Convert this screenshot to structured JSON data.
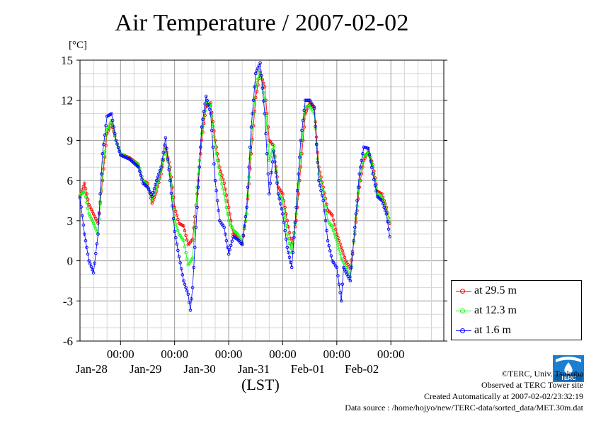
{
  "page": {
    "title": "Air Temperature / 2007-02-02",
    "unit_label": "[°C]",
    "x_axis_label": "(LST)",
    "credits": {
      "copyright": "©TERC, Univ. Tsukuba",
      "observed": "Observed at TERC Tower site",
      "created": "Created Automatically at 2007-02-02/23:32:19",
      "source": "Data source : /home/hojyo/new/TERC-data/sorted_data/MET.30m.dat"
    },
    "logo_text": "TERC"
  },
  "chart_data": {
    "type": "line",
    "title": "Air Temperature / 2007-02-02",
    "ylabel": "[°C]",
    "xlabel": "(LST)",
    "ylim": [
      -6,
      15
    ],
    "yticks": [
      -6,
      -3,
      0,
      3,
      6,
      9,
      12,
      15
    ],
    "x_range_days": [
      "2007-01-27 06:00",
      "2007-02-02 23:30"
    ],
    "xticks": [
      {
        "time": "00:00",
        "date": "Jan-28"
      },
      {
        "time": "00:00",
        "date": "Jan-29"
      },
      {
        "time": "00:00",
        "date": "Jan-30"
      },
      {
        "time": "00:00",
        "date": "Jan-31"
      },
      {
        "time": "00:00",
        "date": "Feb-01"
      },
      {
        "time": "00:00",
        "date": "Feb-02"
      }
    ],
    "grid": true,
    "legend_placement": "bottom-right outside",
    "series": [
      {
        "name": "at 29.5 m",
        "color": "#ff0000",
        "points": [
          [
            "2007-01-27 06:00",
            4.8
          ],
          [
            "2007-01-27 08:00",
            5.8
          ],
          [
            "2007-01-27 10:00",
            4.2
          ],
          [
            "2007-01-27 12:00",
            3.5
          ],
          [
            "2007-01-27 14:00",
            2.8
          ],
          [
            "2007-01-27 16:00",
            6.0
          ],
          [
            "2007-01-27 18:00",
            9.5
          ],
          [
            "2007-01-27 20:00",
            10.3
          ],
          [
            "2007-01-27 22:00",
            9.0
          ],
          [
            "2007-01-28 00:00",
            8.0
          ],
          [
            "2007-01-28 04:00",
            7.7
          ],
          [
            "2007-01-28 08:00",
            7.2
          ],
          [
            "2007-01-28 10:00",
            6.0
          ],
          [
            "2007-01-28 12:00",
            5.8
          ],
          [
            "2007-01-28 14:00",
            4.3
          ],
          [
            "2007-01-28 16:00",
            5.2
          ],
          [
            "2007-01-28 18:00",
            6.5
          ],
          [
            "2007-01-28 20:00",
            8.5
          ],
          [
            "2007-01-28 22:00",
            7.0
          ],
          [
            "2007-01-29 00:00",
            4.0
          ],
          [
            "2007-01-29 02:00",
            2.8
          ],
          [
            "2007-01-29 04:00",
            2.6
          ],
          [
            "2007-01-29 06:00",
            1.2
          ],
          [
            "2007-01-29 08:00",
            1.6
          ],
          [
            "2007-01-29 10:00",
            5.0
          ],
          [
            "2007-01-29 12:00",
            9.0
          ],
          [
            "2007-01-29 14:00",
            11.5
          ],
          [
            "2007-01-29 16:00",
            11.8
          ],
          [
            "2007-01-29 18:00",
            9.0
          ],
          [
            "2007-01-29 20:00",
            7.0
          ],
          [
            "2007-01-29 22:00",
            5.8
          ],
          [
            "2007-01-30 00:00",
            4.0
          ],
          [
            "2007-01-30 02:00",
            2.0
          ],
          [
            "2007-01-30 04:00",
            1.8
          ],
          [
            "2007-01-30 06:00",
            1.3
          ],
          [
            "2007-01-30 08:00",
            3.5
          ],
          [
            "2007-01-30 10:00",
            8.0
          ],
          [
            "2007-01-30 12:00",
            12.2
          ],
          [
            "2007-01-30 14:00",
            14.1
          ],
          [
            "2007-01-30 16:00",
            13.0
          ],
          [
            "2007-01-30 18:00",
            9.0
          ],
          [
            "2007-01-30 20:00",
            8.6
          ],
          [
            "2007-01-30 22:00",
            5.5
          ],
          [
            "2007-01-31 00:00",
            5.0
          ],
          [
            "2007-01-31 02:00",
            3.0
          ],
          [
            "2007-01-31 04:00",
            1.2
          ],
          [
            "2007-01-31 06:00",
            3.0
          ],
          [
            "2007-01-31 08:00",
            7.0
          ],
          [
            "2007-01-31 10:00",
            11.0
          ],
          [
            "2007-01-31 12:00",
            11.8
          ],
          [
            "2007-01-31 14:00",
            11.5
          ],
          [
            "2007-01-31 16:00",
            7.0
          ],
          [
            "2007-01-31 18:00",
            5.5
          ],
          [
            "2007-01-31 20:00",
            3.8
          ],
          [
            "2007-01-31 22:00",
            3.4
          ],
          [
            "2007-02-01 00:00",
            2.0
          ],
          [
            "2007-02-01 02:00",
            1.0
          ],
          [
            "2007-02-01 04:00",
            0.0
          ],
          [
            "2007-02-01 06:00",
            -0.6
          ],
          [
            "2007-02-01 08:00",
            2.0
          ],
          [
            "2007-02-01 10:00",
            5.5
          ],
          [
            "2007-02-01 12:00",
            7.5
          ],
          [
            "2007-02-01 14:00",
            8.2
          ],
          [
            "2007-02-01 16:00",
            7.2
          ],
          [
            "2007-02-01 18:00",
            5.2
          ],
          [
            "2007-02-01 20:00",
            5.0
          ],
          [
            "2007-02-01 22:00",
            4.0
          ],
          [
            "2007-02-01 23:30",
            2.8
          ]
        ]
      },
      {
        "name": "at 12.3 m",
        "color": "#00ff00",
        "points": [
          [
            "2007-01-27 06:00",
            4.9
          ],
          [
            "2007-01-27 08:00",
            5.2
          ],
          [
            "2007-01-27 10:00",
            3.5
          ],
          [
            "2007-01-27 12:00",
            2.8
          ],
          [
            "2007-01-27 14:00",
            2.0
          ],
          [
            "2007-01-27 16:00",
            6.5
          ],
          [
            "2007-01-27 18:00",
            9.8
          ],
          [
            "2007-01-27 20:00",
            10.5
          ],
          [
            "2007-01-27 22:00",
            9.0
          ],
          [
            "2007-01-28 00:00",
            8.0
          ],
          [
            "2007-01-28 04:00",
            7.6
          ],
          [
            "2007-01-28 08:00",
            7.2
          ],
          [
            "2007-01-28 10:00",
            6.0
          ],
          [
            "2007-01-28 12:00",
            5.7
          ],
          [
            "2007-01-28 14:00",
            4.5
          ],
          [
            "2007-01-28 16:00",
            5.5
          ],
          [
            "2007-01-28 18:00",
            6.8
          ],
          [
            "2007-01-28 20:00",
            8.4
          ],
          [
            "2007-01-28 22:00",
            6.5
          ],
          [
            "2007-01-29 00:00",
            3.0
          ],
          [
            "2007-01-29 02:00",
            2.0
          ],
          [
            "2007-01-29 04:00",
            1.5
          ],
          [
            "2007-01-29 06:00",
            -0.3
          ],
          [
            "2007-01-29 08:00",
            0.2
          ],
          [
            "2007-01-29 10:00",
            5.5
          ],
          [
            "2007-01-29 12:00",
            9.5
          ],
          [
            "2007-01-29 14:00",
            11.8
          ],
          [
            "2007-01-29 16:00",
            11.6
          ],
          [
            "2007-01-29 18:00",
            8.5
          ],
          [
            "2007-01-29 20:00",
            6.5
          ],
          [
            "2007-01-29 22:00",
            5.0
          ],
          [
            "2007-01-30 00:00",
            3.0
          ],
          [
            "2007-01-30 02:00",
            2.3
          ],
          [
            "2007-01-30 04:00",
            2.0
          ],
          [
            "2007-01-30 06:00",
            1.4
          ],
          [
            "2007-01-30 08:00",
            3.5
          ],
          [
            "2007-01-30 10:00",
            9.0
          ],
          [
            "2007-01-30 12:00",
            13.0
          ],
          [
            "2007-01-30 14:00",
            14.2
          ],
          [
            "2007-01-30 16:00",
            12.0
          ],
          [
            "2007-01-30 18:00",
            7.5
          ],
          [
            "2007-01-30 20:00",
            8.6
          ],
          [
            "2007-01-30 22:00",
            5.0
          ],
          [
            "2007-01-31 00:00",
            4.5
          ],
          [
            "2007-01-31 02:00",
            2.0
          ],
          [
            "2007-01-31 04:00",
            0.6
          ],
          [
            "2007-01-31 06:00",
            3.5
          ],
          [
            "2007-01-31 08:00",
            8.0
          ],
          [
            "2007-01-31 10:00",
            11.5
          ],
          [
            "2007-01-31 12:00",
            11.6
          ],
          [
            "2007-01-31 14:00",
            11.0
          ],
          [
            "2007-01-31 16:00",
            6.5
          ],
          [
            "2007-01-31 18:00",
            5.2
          ],
          [
            "2007-01-31 20:00",
            3.0
          ],
          [
            "2007-01-31 22:00",
            2.5
          ],
          [
            "2007-02-01 00:00",
            1.5
          ],
          [
            "2007-02-01 02:00",
            0.2
          ],
          [
            "2007-02-01 04:00",
            -0.5
          ],
          [
            "2007-02-01 06:00",
            -1.2
          ],
          [
            "2007-02-01 08:00",
            2.2
          ],
          [
            "2007-02-01 10:00",
            6.0
          ],
          [
            "2007-02-01 12:00",
            7.8
          ],
          [
            "2007-02-01 14:00",
            8.1
          ],
          [
            "2007-02-01 16:00",
            7.0
          ],
          [
            "2007-02-01 18:00",
            5.0
          ],
          [
            "2007-02-01 20:00",
            4.8
          ],
          [
            "2007-02-01 22:00",
            3.8
          ],
          [
            "2007-02-01 23:30",
            2.9
          ]
        ]
      },
      {
        "name": "at 1.6 m",
        "color": "#0000ff",
        "points": [
          [
            "2007-01-27 06:00",
            4.7
          ],
          [
            "2007-01-27 08:00",
            2.0
          ],
          [
            "2007-01-27 10:00",
            0.0
          ],
          [
            "2007-01-27 12:00",
            -0.9
          ],
          [
            "2007-01-27 14:00",
            2.0
          ],
          [
            "2007-01-27 16:00",
            8.0
          ],
          [
            "2007-01-27 18:00",
            10.8
          ],
          [
            "2007-01-27 20:00",
            11.0
          ],
          [
            "2007-01-27 22:00",
            9.0
          ],
          [
            "2007-01-28 00:00",
            7.9
          ],
          [
            "2007-01-28 04:00",
            7.6
          ],
          [
            "2007-01-28 08:00",
            7.0
          ],
          [
            "2007-01-28 10:00",
            5.8
          ],
          [
            "2007-01-28 12:00",
            5.5
          ],
          [
            "2007-01-28 14:00",
            4.8
          ],
          [
            "2007-01-28 16:00",
            6.0
          ],
          [
            "2007-01-28 18:00",
            7.0
          ],
          [
            "2007-01-28 20:00",
            9.2
          ],
          [
            "2007-01-28 22:00",
            6.0
          ],
          [
            "2007-01-29 00:00",
            2.2
          ],
          [
            "2007-01-29 02:00",
            0.3
          ],
          [
            "2007-01-29 04:00",
            -1.5
          ],
          [
            "2007-01-29 06:00",
            -2.5
          ],
          [
            "2007-01-29 07:00",
            -3.7
          ],
          [
            "2007-01-29 08:00",
            -2.0
          ],
          [
            "2007-01-29 10:00",
            4.0
          ],
          [
            "2007-01-29 12:00",
            10.0
          ],
          [
            "2007-01-29 14:00",
            12.3
          ],
          [
            "2007-01-29 16:00",
            11.0
          ],
          [
            "2007-01-29 18:00",
            6.0
          ],
          [
            "2007-01-29 20:00",
            3.0
          ],
          [
            "2007-01-29 22:00",
            2.5
          ],
          [
            "2007-01-30 00:00",
            0.5
          ],
          [
            "2007-01-30 02:00",
            1.8
          ],
          [
            "2007-01-30 04:00",
            1.6
          ],
          [
            "2007-01-30 06:00",
            1.2
          ],
          [
            "2007-01-30 08:00",
            4.0
          ],
          [
            "2007-01-30 10:00",
            10.0
          ],
          [
            "2007-01-30 12:00",
            14.0
          ],
          [
            "2007-01-30 14:00",
            14.8
          ],
          [
            "2007-01-30 16:00",
            11.0
          ],
          [
            "2007-01-30 18:00",
            5.0
          ],
          [
            "2007-01-30 20:00",
            8.2
          ],
          [
            "2007-01-30 22:00",
            5.0
          ],
          [
            "2007-01-31 00:00",
            3.5
          ],
          [
            "2007-01-31 02:00",
            1.0
          ],
          [
            "2007-01-31 04:00",
            -0.5
          ],
          [
            "2007-01-31 06:00",
            4.0
          ],
          [
            "2007-01-31 08:00",
            9.0
          ],
          [
            "2007-01-31 10:00",
            12.0
          ],
          [
            "2007-01-31 12:00",
            12.0
          ],
          [
            "2007-01-31 14:00",
            11.4
          ],
          [
            "2007-01-31 16:00",
            6.0
          ],
          [
            "2007-01-31 18:00",
            4.5
          ],
          [
            "2007-01-31 20:00",
            1.5
          ],
          [
            "2007-01-31 22:00",
            0.0
          ],
          [
            "2007-02-01 00:00",
            -0.5
          ],
          [
            "2007-02-01 02:00",
            -3.0
          ],
          [
            "2007-02-01 03:00",
            -0.5
          ],
          [
            "2007-02-01 06:00",
            -1.5
          ],
          [
            "2007-02-01 08:00",
            2.5
          ],
          [
            "2007-02-01 10:00",
            6.5
          ],
          [
            "2007-02-01 12:00",
            8.5
          ],
          [
            "2007-02-01 14:00",
            8.4
          ],
          [
            "2007-02-01 16:00",
            6.5
          ],
          [
            "2007-02-01 18:00",
            4.8
          ],
          [
            "2007-02-01 20:00",
            4.5
          ],
          [
            "2007-02-01 22:00",
            3.5
          ],
          [
            "2007-02-01 23:30",
            1.8
          ]
        ]
      }
    ]
  }
}
